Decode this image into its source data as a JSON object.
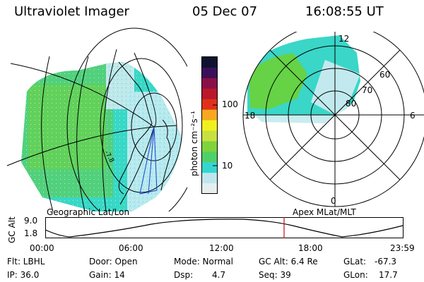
{
  "header": {
    "instrument": "Ultraviolet Imager",
    "date": "05 Dec 07",
    "time": "16:08:55 UT"
  },
  "colorbar": {
    "unit_label": "photon cm⁻²s⁻¹",
    "tick_labels": [
      "100",
      "10"
    ],
    "colors": [
      "#e6eef0",
      "#bfe6ec",
      "#36d6d0",
      "#4fd06a",
      "#7ed43a",
      "#c8e040",
      "#f0f020",
      "#f7a820",
      "#e0301a",
      "#b8182a",
      "#8a1048",
      "#3a105a",
      "#101030"
    ]
  },
  "left_panel": {
    "label": "Geographic Lat/Lon",
    "annotation": "-7.8"
  },
  "right_panel": {
    "label": "Apex MLat/MLT",
    "mlt_labels": {
      "top": "12",
      "left": "18",
      "right": "6",
      "bottom": "0"
    },
    "mlat_labels": [
      "60",
      "70",
      "80"
    ]
  },
  "altitude_plot": {
    "ylabel": "GC Alt",
    "ymax_label": "9.0",
    "ymin_label": "1.8",
    "x_ticks": [
      "00:00",
      "06:00",
      "12:00",
      "18:00",
      "23:59"
    ],
    "current_marker_color": "#c01010"
  },
  "info": {
    "flt": "Flt: LBHL",
    "door": "Door: Open",
    "mode": "Mode: Normal",
    "gc_alt": "GC Alt: 6.4 Re",
    "glat_label": "GLat:",
    "glat_value": "-67.3",
    "ip": "IP: 36.0",
    "gain": "Gain: 14",
    "dsp_label": "Dsp:",
    "dsp_value": "4.7",
    "seq": "Seq: 39",
    "glon_label": "GLon:",
    "glon_value": "17.7"
  }
}
